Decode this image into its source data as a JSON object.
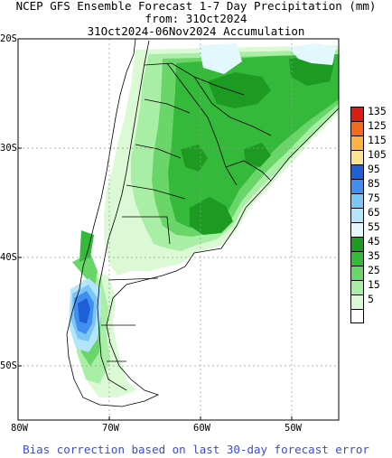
{
  "titles": {
    "line1": "NCEP GFS Ensemble Forecast 1-7 Day Precipitation (mm)",
    "line2": "from: 31Oct2024",
    "line3": "31Oct2024-06Nov2024 Accumulation"
  },
  "axes": {
    "lat_labels": [
      "20S",
      "30S",
      "40S",
      "50S"
    ],
    "lon_labels": [
      "80W",
      "70W",
      "60W",
      "50W"
    ]
  },
  "legend": {
    "items": [
      {
        "label": "135",
        "color": "#d91f13"
      },
      {
        "label": "125",
        "color": "#f66a1e"
      },
      {
        "label": "115",
        "color": "#fbb23f"
      },
      {
        "label": "105",
        "color": "#fbe58e"
      },
      {
        "label": "95",
        "color": "#1f5fd6"
      },
      {
        "label": "85",
        "color": "#3f8ef0"
      },
      {
        "label": "75",
        "color": "#7cc6f7"
      },
      {
        "label": "65",
        "color": "#b3e6fb"
      },
      {
        "label": "55",
        "color": "#e2f8fc"
      },
      {
        "label": "45",
        "color": "#1c9a22"
      },
      {
        "label": "35",
        "color": "#35b93a"
      },
      {
        "label": "25",
        "color": "#6ad66a"
      },
      {
        "label": "15",
        "color": "#a9eea5"
      },
      {
        "label": "5",
        "color": "#daf9d4"
      },
      {
        "label": "",
        "color": "#ffffff"
      }
    ]
  },
  "footer": "Bias correction based on last 30-day forecast error"
}
